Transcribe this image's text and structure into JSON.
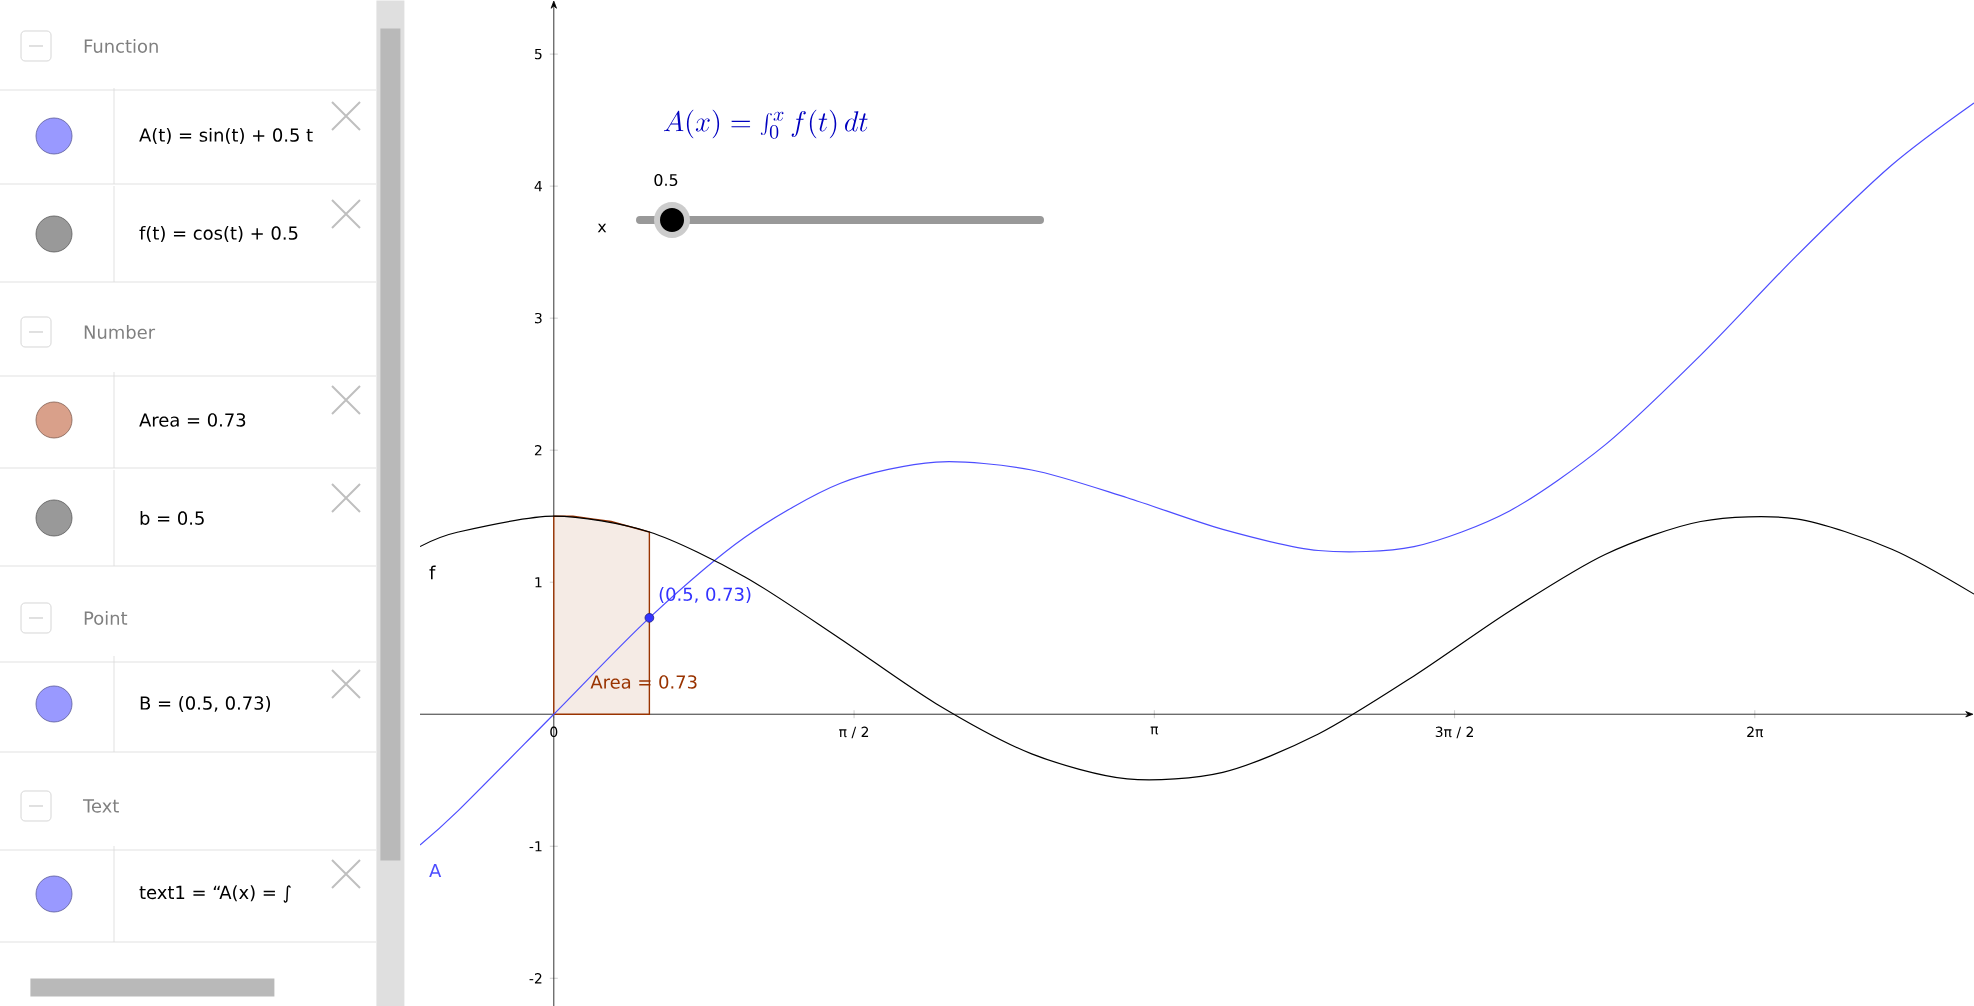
{
  "chart_data": {
    "type": "line",
    "title": "A(x) = \\int_0^x f(t)\\, dt",
    "xlim": [
      -0.7,
      7.43
    ],
    "ylim": [
      -2.21,
      5.41
    ],
    "xticks": [
      {
        "value": 0,
        "label": "0"
      },
      {
        "value": 1.5708,
        "label": "π / 2"
      },
      {
        "value": 3.1416,
        "label": "π"
      },
      {
        "value": 4.7124,
        "label": "3π / 2"
      },
      {
        "value": 6.2832,
        "label": "2π"
      }
    ],
    "yticks": [
      -2,
      -1,
      1,
      2,
      3,
      4,
      5
    ],
    "series": [
      {
        "name": "A",
        "color": "#4d4dff",
        "x": [
          -0.7,
          -0.5,
          0,
          0.5,
          1,
          1.5,
          2,
          2.5,
          3,
          3.5,
          4,
          4.5,
          5,
          5.5,
          6,
          6.5,
          7,
          7.43
        ],
        "values": [
          -0.99,
          -0.73,
          0,
          0.73,
          1.34,
          1.75,
          1.91,
          1.85,
          1.64,
          1.4,
          1.24,
          1.27,
          1.54,
          2.04,
          2.72,
          3.47,
          4.16,
          4.63
        ]
      },
      {
        "name": "f",
        "color": "#000000",
        "x": [
          -0.7,
          -0.5,
          0,
          0.5,
          1,
          1.5,
          2,
          2.5,
          3,
          3.5,
          4,
          4.5,
          5,
          5.5,
          6,
          6.5,
          7,
          7.43
        ],
        "values": [
          1.27,
          1.38,
          1.5,
          1.38,
          1.04,
          0.57,
          0.08,
          -0.3,
          -0.49,
          -0.44,
          -0.15,
          0.29,
          0.78,
          1.21,
          1.46,
          1.48,
          1.25,
          0.91
        ]
      },
      {
        "type": "area",
        "color": "#993300",
        "x": [
          0,
          0.1,
          0.2,
          0.3,
          0.4,
          0.5
        ],
        "values": [
          1.5,
          1.5,
          1.48,
          1.46,
          1.42,
          1.38
        ]
      },
      {
        "type": "scatter",
        "color": "#3333ff",
        "x": [
          0.5
        ],
        "values": [
          0.73
        ],
        "marker": "circle",
        "value_labels": [
          "(0.5, 0.73)"
        ]
      }
    ],
    "annotations": [
      "Area = 0.73",
      "x",
      "0.5",
      "Function",
      "A(t) = sin(t) + 0.5 t",
      "f(t) = cos(t) + 0.5",
      "Number",
      "Area = 0.73",
      "b = 0.5",
      "Point",
      "B = (0.5, 0.73)",
      "Text",
      "text1 = “A(x) = ∫"
    ]
  }
}
